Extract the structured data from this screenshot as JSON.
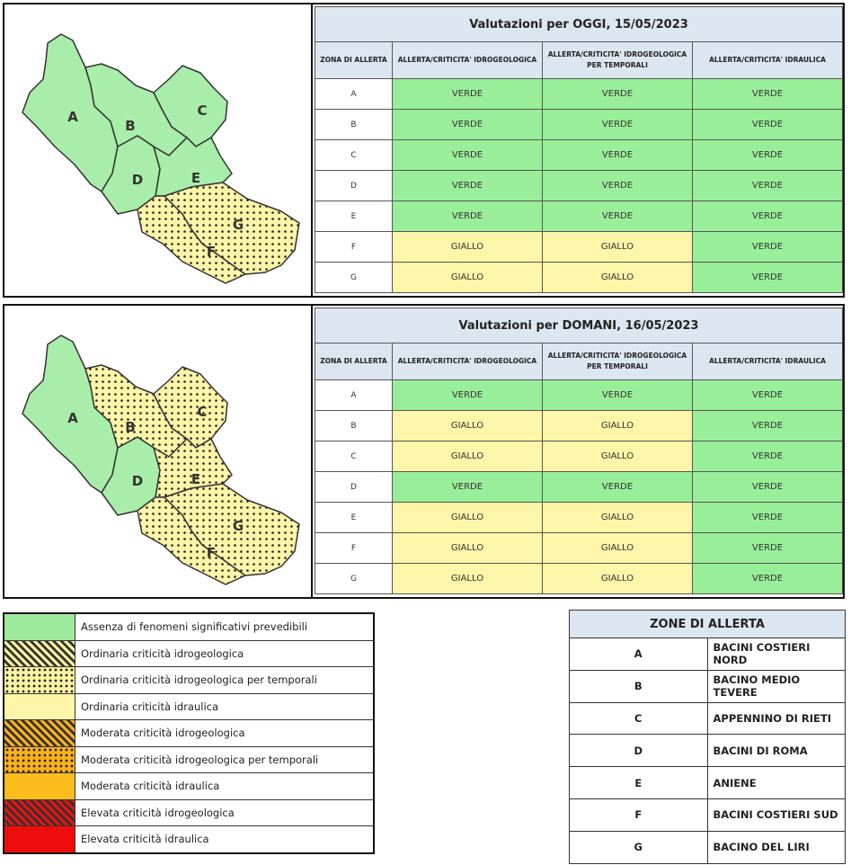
{
  "columns": {
    "zona": "ZONA DI ALLERTA",
    "idro": "ALLERTA/CRITICITA' IDROGEOLOGICA",
    "temp": "ALLERTA/CRITICITA' IDROGEOLOGICA PER TEMPORALI",
    "idra": "ALLERTA/CRITICITA' IDRAULICA"
  },
  "today": {
    "title": "Valutazioni per OGGI, 15/05/2023",
    "rows": [
      {
        "zone": "A",
        "idro": "VERDE",
        "temp": "VERDE",
        "idra": "VERDE"
      },
      {
        "zone": "B",
        "idro": "VERDE",
        "temp": "VERDE",
        "idra": "VERDE"
      },
      {
        "zone": "C",
        "idro": "VERDE",
        "temp": "VERDE",
        "idra": "VERDE"
      },
      {
        "zone": "D",
        "idro": "VERDE",
        "temp": "VERDE",
        "idra": "VERDE"
      },
      {
        "zone": "E",
        "idro": "VERDE",
        "temp": "VERDE",
        "idra": "VERDE"
      },
      {
        "zone": "F",
        "idro": "GIALLO",
        "temp": "GIALLO",
        "idra": "VERDE"
      },
      {
        "zone": "G",
        "idro": "GIALLO",
        "temp": "GIALLO",
        "idra": "VERDE"
      }
    ]
  },
  "tomorrow": {
    "title": "Valutazioni per DOMANI, 16/05/2023",
    "rows": [
      {
        "zone": "A",
        "idro": "VERDE",
        "temp": "VERDE",
        "idra": "VERDE"
      },
      {
        "zone": "B",
        "idro": "GIALLO",
        "temp": "GIALLO",
        "idra": "VERDE"
      },
      {
        "zone": "C",
        "idro": "GIALLO",
        "temp": "GIALLO",
        "idra": "VERDE"
      },
      {
        "zone": "D",
        "idro": "VERDE",
        "temp": "VERDE",
        "idra": "VERDE"
      },
      {
        "zone": "E",
        "idro": "GIALLO",
        "temp": "GIALLO",
        "idra": "VERDE"
      },
      {
        "zone": "F",
        "idro": "GIALLO",
        "temp": "GIALLO",
        "idra": "VERDE"
      },
      {
        "zone": "G",
        "idro": "GIALLO",
        "temp": "GIALLO",
        "idra": "VERDE"
      }
    ]
  },
  "map_labels": [
    "A",
    "B",
    "C",
    "D",
    "E",
    "F",
    "G"
  ],
  "legend": [
    {
      "text": "Assenza di fenomeni significativi prevedibili",
      "pattern": "green"
    },
    {
      "text": "Ordinaria criticità idrogeologica",
      "pattern": "hatch-yellow"
    },
    {
      "text": "Ordinaria criticità idrogeologica per temporali",
      "pattern": "dots-yellow"
    },
    {
      "text": "Ordinaria criticità idraulica",
      "pattern": "yellow"
    },
    {
      "text": "Moderata criticità idrogeologica",
      "pattern": "hatch-orange"
    },
    {
      "text": "Moderata criticità idrogeologica per temporali",
      "pattern": "dots-orange"
    },
    {
      "text": "Moderata criticità idraulica",
      "pattern": "orange"
    },
    {
      "text": "Elevata criticità idrogeologica",
      "pattern": "hatch-red"
    },
    {
      "text": "Elevata criticità idraulica",
      "pattern": "red"
    }
  ],
  "zones": {
    "title": "ZONE DI ALLERTA",
    "rows": [
      {
        "key": "A",
        "name": "BACINI COSTIERI NORD"
      },
      {
        "key": "B",
        "name": "BACINO MEDIO TEVERE"
      },
      {
        "key": "C",
        "name": "APPENNINO DI RIETI"
      },
      {
        "key": "D",
        "name": "BACINI DI ROMA"
      },
      {
        "key": "E",
        "name": "ANIENE"
      },
      {
        "key": "F",
        "name": "BACINI COSTIERI SUD"
      },
      {
        "key": "G",
        "name": "BACINO DEL LIRI"
      }
    ]
  },
  "colors": {
    "verde": "#99ee99",
    "giallo": "#fdf5a8",
    "header": "#dce6f1"
  }
}
